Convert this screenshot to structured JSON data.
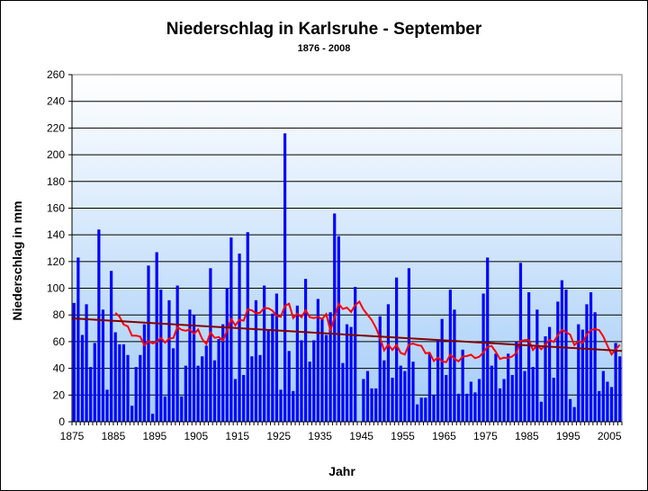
{
  "chart_data": {
    "type": "bar",
    "title": "Niederschlag in Karlsruhe - September",
    "subtitle": "1876 - 2008",
    "xlabel": "Jahr",
    "ylabel": "Niederschlag in mm",
    "ylim": [
      0,
      260
    ],
    "yticks": [
      "0",
      "20",
      "40",
      "60",
      "80",
      "100",
      "120",
      "140",
      "160",
      "180",
      "200",
      "220",
      "240",
      "260"
    ],
    "xticks": [
      "1875",
      "1885",
      "1895",
      "1905",
      "1915",
      "1925",
      "1935",
      "1945",
      "1955",
      "1965",
      "1975",
      "1985",
      "1995",
      "2005"
    ],
    "grid": true,
    "start_year": 1876,
    "end_year": 2008,
    "values": [
      89,
      123,
      65,
      88,
      41,
      59,
      144,
      84,
      24,
      113,
      67,
      58,
      58,
      50,
      12,
      41,
      50,
      73,
      117,
      6,
      127,
      99,
      19,
      91,
      55,
      102,
      19,
      42,
      84,
      80,
      42,
      49,
      57,
      115,
      46,
      62,
      73,
      100,
      138,
      32,
      126,
      35,
      142,
      49,
      91,
      50,
      102,
      69,
      81,
      96,
      24,
      216,
      53,
      23,
      87,
      61,
      107,
      45,
      61,
      92,
      77,
      65,
      82,
      156,
      139,
      44,
      73,
      71,
      101,
      null,
      32,
      38,
      25,
      25,
      79,
      46,
      88,
      33,
      108,
      42,
      38,
      115,
      45,
      13,
      18,
      18,
      51,
      20,
      61,
      77,
      35,
      99,
      84,
      21,
      54,
      21,
      30,
      22,
      32,
      96,
      123,
      42,
      51,
      25,
      32,
      51,
      35,
      60,
      119,
      38,
      97,
      41,
      84,
      15,
      64,
      71,
      33,
      90,
      106,
      99,
      17,
      11,
      73,
      69,
      88,
      97,
      82,
      23,
      38,
      30,
      26,
      59,
      49
    ],
    "series_colors": {
      "bars": "#0000ff",
      "moving_average": "#ff0000",
      "trend": "#800000"
    },
    "moving_average_window": 11
  }
}
